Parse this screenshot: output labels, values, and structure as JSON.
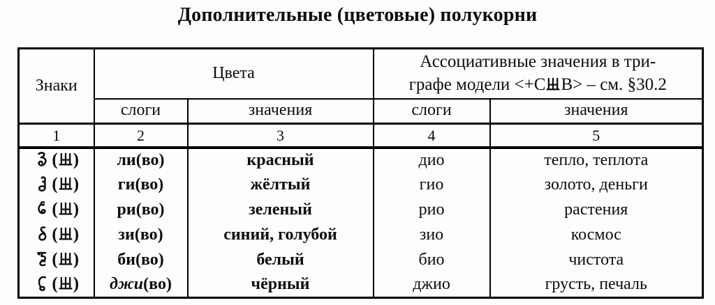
{
  "title": "Дополнительные (цветовые) полукорни",
  "colors": {
    "ink": "#0d0d0d",
    "border": "#000000",
    "background": "#fdfdfc"
  },
  "table": {
    "header": {
      "signs": "Знаки",
      "colors_group": "Цвета",
      "assoc_line1": "Ассоциативные значения в три-",
      "assoc_line2_pre": "графе модели <+С",
      "assoc_line2_post": "В> – см. §30.2",
      "syllables": "слоги",
      "meanings": "значения",
      "col_numbers": [
        "1",
        "2",
        "3",
        "4",
        "5"
      ]
    },
    "special_sign": "trident-sign",
    "paren_open": "(",
    "paren_close": ")",
    "rows": [
      {
        "sign": "li-sign",
        "stem": "ли",
        "ending": "(во)",
        "italic": false,
        "color": "красный",
        "asyll": "дио",
        "ameaning": "тепло, теплота"
      },
      {
        "sign": "gi-sign",
        "stem": "ги",
        "ending": "(во)",
        "italic": false,
        "color": "жёлтый",
        "asyll": "гио",
        "ameaning": "золото, деньги"
      },
      {
        "sign": "ri-sign",
        "stem": "ри",
        "ending": "(во)",
        "italic": false,
        "color": "зеленый",
        "asyll": "рио",
        "ameaning": "растения"
      },
      {
        "sign": "zi-sign",
        "stem": "зи",
        "ending": "(во)",
        "italic": false,
        "color": "синий, голубой",
        "asyll": "зио",
        "ameaning": "космос"
      },
      {
        "sign": "bi-sign",
        "stem": "би",
        "ending": "(во)",
        "italic": false,
        "color": "белый",
        "asyll": "био",
        "ameaning": "чистота"
      },
      {
        "sign": "dzhi-sign",
        "stem": "джи",
        "ending": "(во)",
        "italic": true,
        "color": "чёрный",
        "asyll": "джио",
        "ameaning": "грусть, печаль"
      }
    ]
  }
}
